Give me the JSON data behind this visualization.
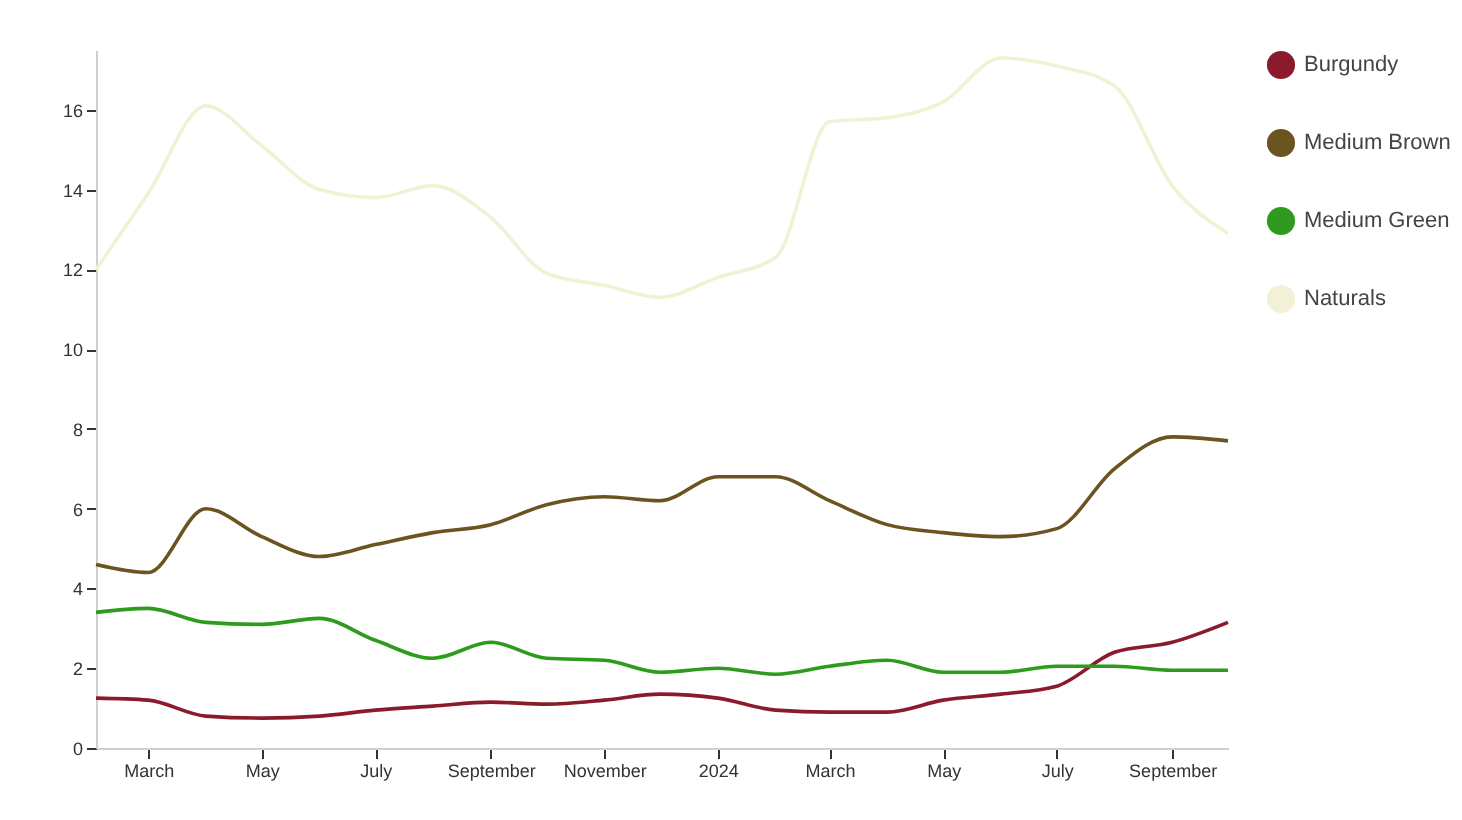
{
  "chart_data": {
    "type": "line",
    "x": [
      "2023-02",
      "2023-03",
      "2023-04",
      "2023-05",
      "2023-06",
      "2023-07",
      "2023-08",
      "2023-09",
      "2023-10",
      "2023-11",
      "2023-12",
      "2024-01",
      "2024-02",
      "2024-03",
      "2024-04",
      "2024-05",
      "2024-06",
      "2024-07",
      "2024-08",
      "2024-09",
      "2024-10"
    ],
    "series": [
      {
        "name": "Burgundy",
        "color": "#8b1a2b",
        "values": [
          1.25,
          1.2,
          0.8,
          0.75,
          0.8,
          0.95,
          1.05,
          1.15,
          1.1,
          1.2,
          1.35,
          1.25,
          0.95,
          0.9,
          0.9,
          1.2,
          1.35,
          1.55,
          2.4,
          2.65,
          3.15
        ]
      },
      {
        "name": "Medium Brown",
        "color": "#6b5420",
        "values": [
          4.6,
          4.4,
          6.0,
          5.3,
          4.8,
          5.1,
          5.4,
          5.6,
          6.1,
          6.3,
          6.2,
          6.8,
          6.8,
          6.2,
          5.6,
          5.4,
          5.3,
          5.5,
          7.0,
          7.8,
          7.7
        ]
      },
      {
        "name": "Medium Green",
        "color": "#2e9b1e",
        "values": [
          3.4,
          3.5,
          3.15,
          3.1,
          3.25,
          2.7,
          2.25,
          2.65,
          2.25,
          2.2,
          1.9,
          2.0,
          1.85,
          2.05,
          2.2,
          1.9,
          1.9,
          2.05,
          2.05,
          1.95,
          1.95
        ]
      },
      {
        "name": "Naturals",
        "color": "#f3f1d5",
        "values": [
          12.0,
          13.9,
          16.1,
          15.1,
          14.0,
          13.8,
          14.1,
          13.3,
          11.9,
          11.6,
          11.3,
          11.8,
          12.3,
          15.7,
          15.8,
          16.2,
          17.3,
          17.1,
          16.6,
          14.1,
          12.9
        ]
      }
    ],
    "xticks": [
      {
        "value": "2023-03",
        "label": "March"
      },
      {
        "value": "2023-05",
        "label": "May"
      },
      {
        "value": "2023-07",
        "label": "July"
      },
      {
        "value": "2023-09",
        "label": "September"
      },
      {
        "value": "2023-11",
        "label": "November"
      },
      {
        "value": "2024-01",
        "label": "2024"
      },
      {
        "value": "2024-03",
        "label": "March"
      },
      {
        "value": "2024-05",
        "label": "May"
      },
      {
        "value": "2024-07",
        "label": "July"
      },
      {
        "value": "2024-09",
        "label": "September"
      }
    ],
    "xlim": [
      "2023-02",
      "2024-10"
    ],
    "ylim": [
      0,
      17.5
    ],
    "yticks": [
      0,
      2,
      4,
      6,
      8,
      10,
      12,
      14,
      16
    ],
    "grid": false,
    "legend": "right",
    "line_style": "solid",
    "marker": "none"
  }
}
